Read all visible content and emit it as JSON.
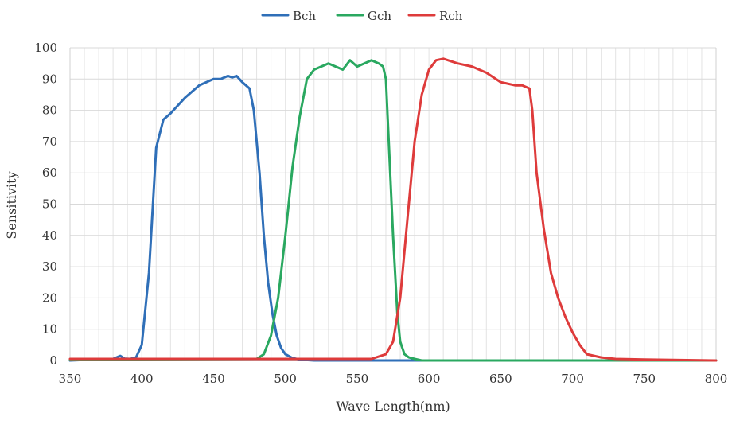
{
  "chart_data": {
    "type": "line",
    "xlabel": "Wave Length(nm)",
    "ylabel": "Sensitivity",
    "xlim": [
      350,
      800
    ],
    "ylim": [
      0,
      100
    ],
    "x_ticks": [
      350,
      400,
      450,
      500,
      550,
      600,
      650,
      700,
      750,
      800
    ],
    "y_ticks": [
      0,
      10,
      20,
      30,
      40,
      50,
      60,
      70,
      80,
      90,
      100
    ],
    "grid": true,
    "legend_position": "top-center",
    "series": [
      {
        "name": "Bch",
        "color": "#2f6fb8",
        "x": [
          350,
          360,
          370,
          380,
          385,
          388,
          392,
          396,
          400,
          405,
          410,
          415,
          420,
          430,
          440,
          450,
          455,
          460,
          463,
          466,
          470,
          475,
          478,
          482,
          485,
          488,
          491,
          494,
          497,
          500,
          505,
          510,
          520,
          560,
          800
        ],
        "y": [
          0,
          0.2,
          0.5,
          0.5,
          1.5,
          0.6,
          0.5,
          1,
          5,
          28,
          68,
          77,
          79,
          84,
          88,
          90,
          90,
          91,
          90.5,
          91,
          89,
          87,
          80,
          60,
          40,
          25,
          15,
          8,
          4,
          2,
          0.8,
          0.3,
          0,
          0,
          0
        ]
      },
      {
        "name": "Gch",
        "color": "#2aa860",
        "x": [
          350,
          480,
          485,
          490,
          495,
          500,
          505,
          510,
          515,
          520,
          525,
          530,
          535,
          540,
          545,
          550,
          555,
          560,
          565,
          568,
          570,
          572,
          575,
          578,
          580,
          583,
          586,
          590,
          595,
          800
        ],
        "y": [
          0.3,
          0.5,
          2,
          8,
          20,
          40,
          62,
          78,
          90,
          93,
          94,
          95,
          94,
          93,
          96,
          94,
          95,
          96,
          95,
          94,
          90,
          70,
          40,
          15,
          6,
          2,
          1,
          0.5,
          0,
          0
        ]
      },
      {
        "name": "Rch",
        "color": "#de3b3b",
        "x": [
          350,
          560,
          570,
          575,
          580,
          585,
          590,
          595,
          600,
          605,
          610,
          620,
          630,
          640,
          650,
          660,
          665,
          670,
          672,
          675,
          680,
          685,
          690,
          695,
          700,
          705,
          710,
          720,
          730,
          750,
          800
        ],
        "y": [
          0.5,
          0.5,
          2,
          6,
          20,
          45,
          70,
          85,
          93,
          96,
          96.5,
          95,
          94,
          92,
          89,
          88,
          88,
          87,
          80,
          60,
          42,
          28,
          20,
          14,
          9,
          5,
          2,
          1,
          0.5,
          0.3,
          0
        ]
      }
    ]
  }
}
